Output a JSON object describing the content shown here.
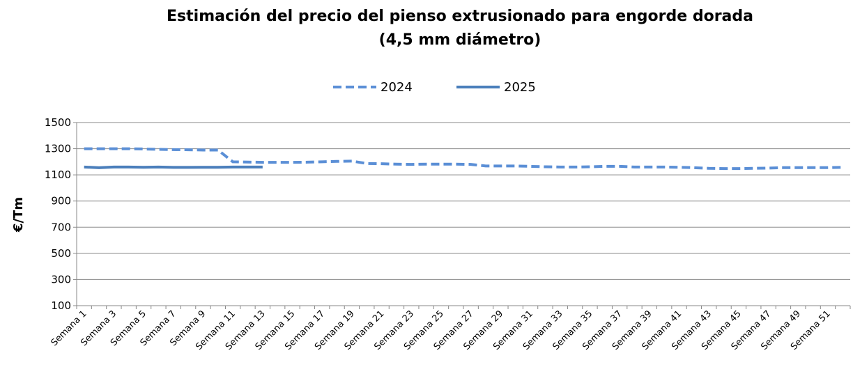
{
  "chart_data": {
    "type": "line",
    "title": "Estimación del precio del pienso extrusionado para engorde dorada",
    "subtitle": "(4,5 mm diámetro)",
    "y_label": "€/Tm",
    "categories": [
      "Semana 1",
      null,
      "Semana 3",
      null,
      "Semana 5",
      null,
      "Semana 7",
      null,
      "Semana 9",
      null,
      "Semana 11",
      null,
      "Semana 13",
      null,
      "Semana 15",
      null,
      "Semana 17",
      null,
      "Semana 19",
      null,
      "Semana 21",
      null,
      "Semana 23",
      null,
      "Semana 25",
      null,
      "Semana 27",
      null,
      "Semana 29",
      null,
      "Semana 31",
      null,
      "Semana 33",
      null,
      "Semana 35",
      null,
      "Semana 37",
      null,
      "Semana 39",
      null,
      "Semana 41",
      null,
      "Semana 43",
      null,
      "Semana 45",
      null,
      "Semana 47",
      null,
      "Semana 49",
      null,
      "Semana 51",
      null
    ],
    "series": [
      {
        "name": "2024",
        "color": "#5b8fd6",
        "dashed": true,
        "values": [
          1300,
          1300,
          1300,
          1300,
          1298,
          1295,
          1293,
          1292,
          1290,
          1290,
          1200,
          1198,
          1196,
          1196,
          1196,
          1197,
          1200,
          1203,
          1205,
          1187,
          1185,
          1182,
          1180,
          1182,
          1182,
          1182,
          1180,
          1168,
          1168,
          1168,
          1165,
          1162,
          1160,
          1160,
          1162,
          1165,
          1165,
          1160,
          1160,
          1160,
          1158,
          1155,
          1150,
          1148,
          1148,
          1150,
          1152,
          1155,
          1155,
          1155,
          1155,
          1158
        ]
      },
      {
        "name": "2025",
        "color": "#4a7ebb",
        "dashed": false,
        "values": [
          1160,
          1155,
          1160,
          1160,
          1158,
          1160,
          1157,
          1157,
          1158,
          1158,
          1160,
          1160,
          1160,
          null,
          null,
          null,
          null,
          null,
          null,
          null,
          null,
          null,
          null,
          null,
          null,
          null,
          null,
          null,
          null,
          null,
          null,
          null,
          null,
          null,
          null,
          null,
          null,
          null,
          null,
          null,
          null,
          null,
          null,
          null,
          null,
          null,
          null,
          null,
          null,
          null,
          null,
          null
        ]
      }
    ],
    "ylim": [
      100,
      1500
    ],
    "yticks": [
      100,
      300,
      500,
      700,
      900,
      1100,
      1300,
      1500
    ],
    "grid": true,
    "legend": "top"
  }
}
